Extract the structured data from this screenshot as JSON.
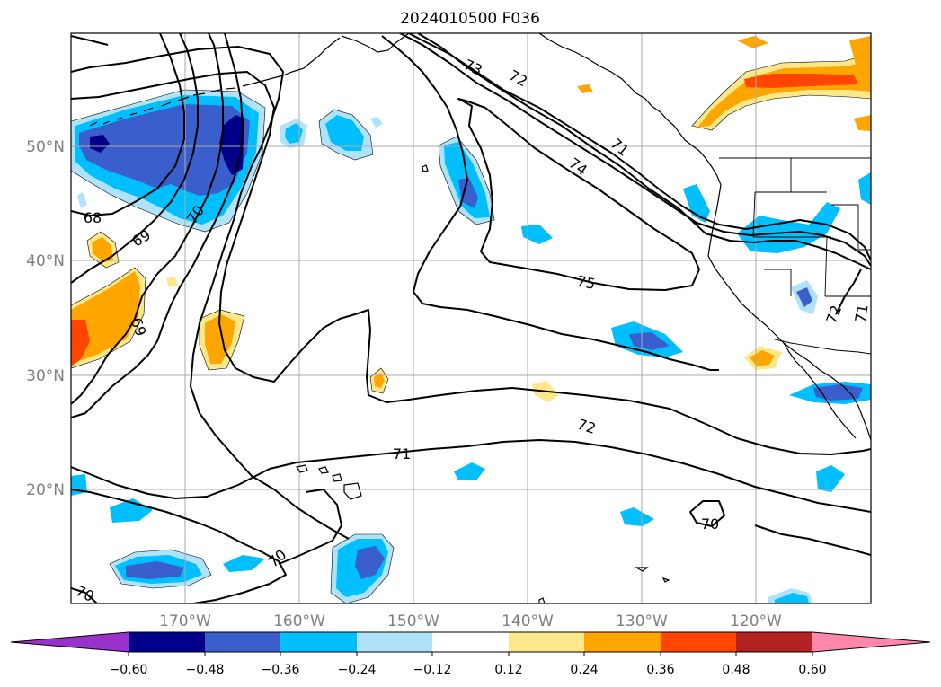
{
  "title": "2024010500 F036",
  "lat_labels": [
    "50°N",
    "40°N",
    "30°N",
    "20°N"
  ],
  "lon_labels": [
    "170°W",
    "160°W",
    "150°W",
    "140°W",
    "130°W",
    "120°W"
  ],
  "contour_labels": [
    "73",
    "72",
    "71",
    "74",
    "68",
    "69",
    "70",
    "75",
    "69",
    "72",
    "71",
    "70",
    "70",
    "70",
    "72",
    "71"
  ],
  "colorbar": {
    "colors": [
      "#9932cc",
      "#00008b",
      "#3a5fcd",
      "#00bfff",
      "#afe3fb",
      "#ffffff",
      "#fbe88a",
      "#ffa500",
      "#ff4500",
      "#b22222",
      "#ff88aa"
    ],
    "ticks": [
      "−0.60",
      "−0.48",
      "−0.36",
      "−0.24",
      "−0.12",
      "0.12",
      "0.24",
      "0.36",
      "0.48",
      "0.60"
    ]
  }
}
